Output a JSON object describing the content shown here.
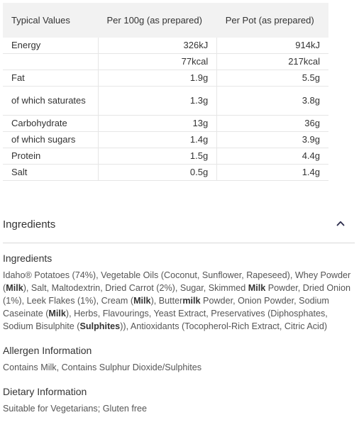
{
  "nutrition": {
    "headers": [
      "Typical Values",
      "Per 100g (as prepared)",
      "Per Pot (as prepared)"
    ],
    "rows": [
      {
        "label": "Energy",
        "per100": "326kJ",
        "perPot": "914kJ"
      },
      {
        "label": "",
        "per100": "77kcal",
        "perPot": "217kcal"
      },
      {
        "label": "Fat",
        "per100": "1.9g",
        "perPot": "5.5g"
      },
      {
        "label": "of which saturates",
        "per100": "1.3g",
        "perPot": "3.8g"
      },
      {
        "label": "Carbohydrate",
        "per100": "13g",
        "perPot": "36g"
      },
      {
        "label": "of which sugars",
        "per100": "1.4g",
        "perPot": "3.9g"
      },
      {
        "label": "Protein",
        "per100": "1.5g",
        "perPot": "4.4g"
      },
      {
        "label": "Salt",
        "per100": "0.5g",
        "perPot": "1.4g"
      }
    ]
  },
  "ingredients_section": {
    "title": "Ingredients",
    "chevron_icon": "chevron-up-icon",
    "ingredients_heading": "Ingredients",
    "ingredients_parts": [
      {
        "t": "Idaho® Potatoes (74%), Vegetable Oils (Coconut, Sunflower, Rapeseed), Whey Powder (",
        "b": false
      },
      {
        "t": "Milk",
        "b": true
      },
      {
        "t": "), Salt, Maltodextrin, Dried Carrot (2%), Sugar, Skimmed ",
        "b": false
      },
      {
        "t": "Milk",
        "b": true
      },
      {
        "t": " Powder, Dried Onion (1%), Leek Flakes (1%), Cream (",
        "b": false
      },
      {
        "t": "Milk",
        "b": true
      },
      {
        "t": "), Butter",
        "b": false
      },
      {
        "t": "milk",
        "b": true
      },
      {
        "t": " Powder, Onion Powder, Sodium Caseinate (",
        "b": false
      },
      {
        "t": "Milk",
        "b": true
      },
      {
        "t": "), Herbs, Flavourings, Yeast Extract, Preservatives (Diphosphates, Sodium Bisulphite (",
        "b": false
      },
      {
        "t": "Sulphites",
        "b": true
      },
      {
        "t": ")), Antioxidants (Tocopherol-Rich Extract, Citric Acid)",
        "b": false
      }
    ],
    "allergen_heading": "Allergen Information",
    "allergen_text": "Contains Milk, Contains Sulphur Dioxide/Sulphites",
    "dietary_heading": "Dietary Information",
    "dietary_text": "Suitable for Vegetarians; Gluten free"
  },
  "colors": {
    "header_bg": "#f2f2f2",
    "text": "#333333",
    "muted": "#555555",
    "accent": "#2a2a4a"
  }
}
